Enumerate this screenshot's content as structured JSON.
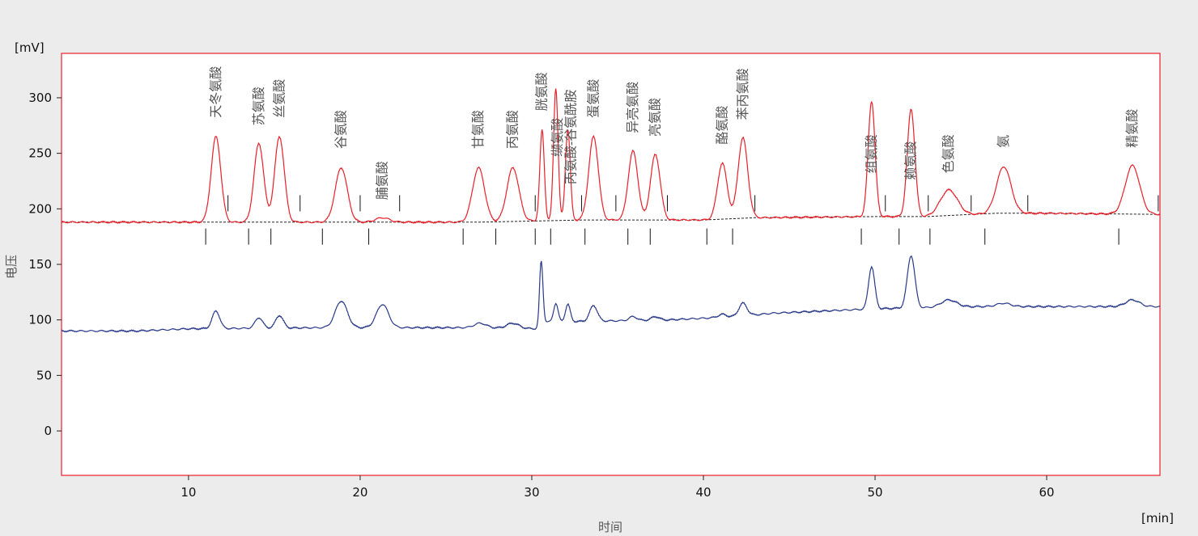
{
  "chart_data": {
    "type": "line",
    "xlabel": "时间",
    "ylabel": "电压",
    "x_unit": "[min]",
    "y_unit": "[mV]",
    "xlim": [
      2.6,
      66.6
    ],
    "ylim": [
      -40,
      340
    ],
    "x_ticks": [
      10,
      20,
      30,
      40,
      50,
      60
    ],
    "y_ticks": [
      0,
      50,
      100,
      150,
      200,
      250,
      300
    ],
    "grid": false,
    "colors": {
      "series_upper": "#e8202a",
      "series_lower": "#2a3a8a",
      "baseline": "#222222",
      "frame": "#e8202a"
    },
    "series": [
      {
        "baseline": [
          [
            2.6,
            188
          ],
          [
            27,
            188
          ],
          [
            33,
            190
          ],
          [
            37,
            190
          ],
          [
            40,
            190
          ],
          [
            43,
            192
          ],
          [
            50,
            193
          ],
          [
            53,
            193
          ],
          [
            57,
            196
          ],
          [
            60,
            196
          ],
          [
            66.6,
            195
          ]
        ],
        "peaks": [
          {
            "x": 11.6,
            "y": 265,
            "w": 0.28
          },
          {
            "x": 14.1,
            "y": 259,
            "w": 0.28
          },
          {
            "x": 15.3,
            "y": 265,
            "w": 0.28
          },
          {
            "x": 18.9,
            "y": 237,
            "w": 0.35
          },
          {
            "x": 21.3,
            "y": 192,
            "w": 0.4
          },
          {
            "x": 26.9,
            "y": 237,
            "w": 0.35
          },
          {
            "x": 28.9,
            "y": 237,
            "w": 0.35
          },
          {
            "x": 30.6,
            "y": 271,
            "w": 0.13
          },
          {
            "x": 31.4,
            "y": 309,
            "w": 0.13
          },
          {
            "x": 32.1,
            "y": 272,
            "w": 0.14
          },
          {
            "x": 33.6,
            "y": 265,
            "w": 0.28
          },
          {
            "x": 35.9,
            "y": 252,
            "w": 0.28
          },
          {
            "x": 37.2,
            "y": 249,
            "w": 0.28
          },
          {
            "x": 41.1,
            "y": 241,
            "w": 0.28
          },
          {
            "x": 42.3,
            "y": 264,
            "w": 0.28
          },
          {
            "x": 49.8,
            "y": 297,
            "w": 0.2
          },
          {
            "x": 52.1,
            "y": 290,
            "w": 0.22
          },
          {
            "x": 54.3,
            "y": 217,
            "w": 0.5
          },
          {
            "x": 57.5,
            "y": 238,
            "w": 0.42
          },
          {
            "x": 65.0,
            "y": 239,
            "w": 0.42
          }
        ]
      },
      {
        "baseline": [
          [
            2.6,
            90
          ],
          [
            7,
            90
          ],
          [
            10,
            92
          ],
          [
            18,
            93
          ],
          [
            27,
            93
          ],
          [
            30.4,
            92
          ],
          [
            30.5,
            98
          ],
          [
            38,
            100
          ],
          [
            42,
            103
          ],
          [
            44,
            106
          ],
          [
            50,
            110
          ],
          [
            56,
            112
          ],
          [
            66.6,
            112
          ]
        ],
        "peaks": [
          {
            "x": 11.6,
            "y": 108,
            "w": 0.22
          },
          {
            "x": 14.1,
            "y": 102,
            "w": 0.22
          },
          {
            "x": 15.3,
            "y": 104,
            "w": 0.22
          },
          {
            "x": 18.9,
            "y": 117,
            "w": 0.35
          },
          {
            "x": 21.3,
            "y": 114,
            "w": 0.35
          },
          {
            "x": 27.0,
            "y": 97,
            "w": 0.35
          },
          {
            "x": 28.9,
            "y": 97,
            "w": 0.35
          },
          {
            "x": 30.55,
            "y": 153,
            "w": 0.1
          },
          {
            "x": 31.4,
            "y": 115,
            "w": 0.13
          },
          {
            "x": 32.1,
            "y": 114,
            "w": 0.14
          },
          {
            "x": 33.6,
            "y": 113,
            "w": 0.22
          },
          {
            "x": 35.9,
            "y": 103,
            "w": 0.22
          },
          {
            "x": 37.2,
            "y": 103,
            "w": 0.22
          },
          {
            "x": 41.1,
            "y": 105,
            "w": 0.24
          },
          {
            "x": 42.3,
            "y": 115,
            "w": 0.24
          },
          {
            "x": 49.8,
            "y": 148,
            "w": 0.18
          },
          {
            "x": 52.1,
            "y": 158,
            "w": 0.22
          },
          {
            "x": 54.3,
            "y": 118,
            "w": 0.45
          },
          {
            "x": 57.5,
            "y": 115,
            "w": 0.4
          },
          {
            "x": 65.0,
            "y": 118,
            "w": 0.4
          }
        ]
      }
    ],
    "integration_markers": [
      {
        "x": 11.0,
        "y": 175
      },
      {
        "x": 12.3,
        "y": 205
      },
      {
        "x": 13.5,
        "y": 175
      },
      {
        "x": 14.8,
        "y": 175
      },
      {
        "x": 16.5,
        "y": 205
      },
      {
        "x": 17.8,
        "y": 175
      },
      {
        "x": 20.0,
        "y": 205
      },
      {
        "x": 20.5,
        "y": 175
      },
      {
        "x": 22.3,
        "y": 205
      },
      {
        "x": 26.0,
        "y": 175
      },
      {
        "x": 27.9,
        "y": 175
      },
      {
        "x": 30.2,
        "y": 175
      },
      {
        "x": 30.2,
        "y": 205
      },
      {
        "x": 31.1,
        "y": 175
      },
      {
        "x": 32.9,
        "y": 205
      },
      {
        "x": 33.1,
        "y": 175
      },
      {
        "x": 34.9,
        "y": 205
      },
      {
        "x": 35.6,
        "y": 175
      },
      {
        "x": 36.9,
        "y": 175
      },
      {
        "x": 37.9,
        "y": 205
      },
      {
        "x": 40.2,
        "y": 175
      },
      {
        "x": 41.7,
        "y": 175
      },
      {
        "x": 43.0,
        "y": 205
      },
      {
        "x": 49.2,
        "y": 175
      },
      {
        "x": 50.6,
        "y": 205
      },
      {
        "x": 51.4,
        "y": 175
      },
      {
        "x": 53.1,
        "y": 205
      },
      {
        "x": 53.2,
        "y": 175
      },
      {
        "x": 55.6,
        "y": 205
      },
      {
        "x": 56.4,
        "y": 175
      },
      {
        "x": 58.9,
        "y": 205
      },
      {
        "x": 64.2,
        "y": 175
      },
      {
        "x": 66.5,
        "y": 205
      }
    ],
    "peak_labels": [
      {
        "text": "天冬氨酸",
        "x": 11.6,
        "y": 282
      },
      {
        "text": "苏氨酸",
        "x": 14.1,
        "y": 275
      },
      {
        "text": "丝氨酸",
        "x": 15.3,
        "y": 282
      },
      {
        "text": "谷氨酸",
        "x": 18.9,
        "y": 254
      },
      {
        "text": "脯氨酸",
        "x": 21.3,
        "y": 208
      },
      {
        "text": "甘氨酸",
        "x": 26.9,
        "y": 254
      },
      {
        "text": "丙氨酸",
        "x": 28.9,
        "y": 254
      },
      {
        "text": "胱氨酸",
        "x": 30.6,
        "y": 288
      },
      {
        "text": "缬氨酸",
        "x": 31.5,
        "y": 247
      },
      {
        "text": "丙氨酸-谷氨酰胺",
        "x": 32.3,
        "y": 222
      },
      {
        "text": "蛋氨酸",
        "x": 33.6,
        "y": 282
      },
      {
        "text": "异亮氨酸",
        "x": 35.9,
        "y": 268
      },
      {
        "text": "亮氨酸",
        "x": 37.2,
        "y": 265
      },
      {
        "text": "酪氨酸",
        "x": 41.1,
        "y": 258
      },
      {
        "text": "苯丙氨酸",
        "x": 42.3,
        "y": 280
      },
      {
        "text": "组氨酸",
        "x": 49.8,
        "y": 232
      },
      {
        "text": "赖氨酸",
        "x": 52.1,
        "y": 226
      },
      {
        "text": "色氨酸",
        "x": 54.3,
        "y": 232
      },
      {
        "text": "氨",
        "x": 57.5,
        "y": 255
      },
      {
        "text": "精氨酸",
        "x": 65.0,
        "y": 255
      }
    ]
  }
}
